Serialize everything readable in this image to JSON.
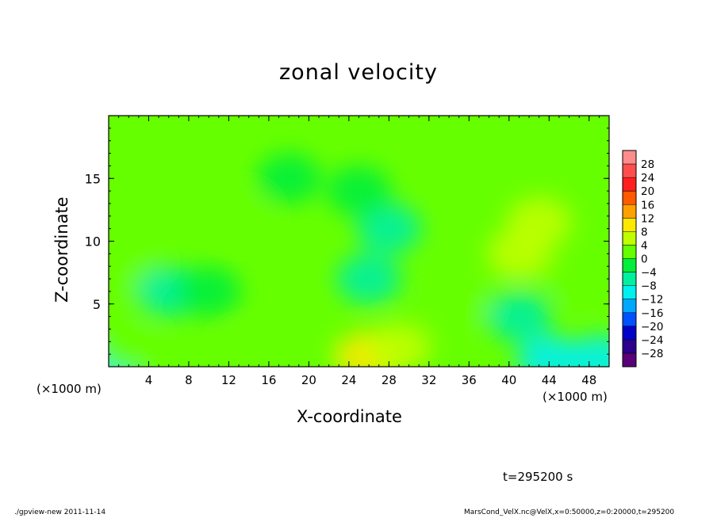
{
  "chart_data": {
    "type": "heatmap",
    "title": "zonal velocity",
    "xlabel": "X-coordinate",
    "ylabel": "Z-coordinate",
    "x_unit_label": "(×1000 m)",
    "xlim": [
      0,
      50
    ],
    "ylim": [
      0,
      20
    ],
    "x_ticks": [
      4,
      8,
      12,
      16,
      20,
      24,
      28,
      32,
      36,
      40,
      44,
      48
    ],
    "y_ticks": [
      5,
      10,
      15
    ],
    "colorbar": {
      "levels": [
        28,
        24,
        20,
        16,
        12,
        8,
        4,
        0,
        -4,
        -8,
        -12,
        -16,
        -20,
        -24,
        -28
      ],
      "labels": [
        "28",
        "24",
        "20",
        "16",
        "12",
        "8",
        "4",
        "0",
        "−4",
        "−8",
        "−12",
        "−16",
        "−20",
        "−24",
        "−28"
      ],
      "colors": [
        "#ff8c8c",
        "#ff4e4e",
        "#ff1f1f",
        "#ff5a00",
        "#ffa000",
        "#ffe800",
        "#bfff00",
        "#66ff00",
        "#00ef3a",
        "#00f0a0",
        "#00f0f0",
        "#00a8ff",
        "#0050ff",
        "#0000c8",
        "#2c008c",
        "#5a0078"
      ]
    },
    "field_features": [
      {
        "x": 0,
        "z": 0,
        "value": -9
      },
      {
        "x": 2,
        "z": 1.5,
        "value": 3
      },
      {
        "x": 26,
        "z": 0.8,
        "value": 9
      },
      {
        "x": 29,
        "z": 1.5,
        "value": 6
      },
      {
        "x": 20,
        "z": 0.5,
        "value": 3
      },
      {
        "x": 14,
        "z": 1.0,
        "value": 3
      },
      {
        "x": 44,
        "z": 0.5,
        "value": -10
      },
      {
        "x": 49,
        "z": 0.5,
        "value": -10
      },
      {
        "x": 41,
        "z": 4,
        "value": -6
      },
      {
        "x": 26,
        "z": 7,
        "value": -6
      },
      {
        "x": 28,
        "z": 11,
        "value": -5
      },
      {
        "x": 25,
        "z": 14,
        "value": -2
      },
      {
        "x": 18,
        "z": 15,
        "value": -1
      },
      {
        "x": 41,
        "z": 9,
        "value": 7
      },
      {
        "x": 43,
        "z": 11.5,
        "value": 4
      },
      {
        "x": 3,
        "z": 7,
        "value": 1
      },
      {
        "x": 6,
        "z": 6,
        "value": -5
      },
      {
        "x": 10,
        "z": 6,
        "value": -3
      },
      {
        "x": 13,
        "z": 12,
        "value": 2
      },
      {
        "x": 35,
        "z": 5,
        "value": 2
      },
      {
        "x": 47,
        "z": 7,
        "value": 2
      }
    ],
    "field_background": 0.5
  },
  "annotation": {
    "time": "t=295200 s"
  },
  "footer": {
    "left": "./gpview-new  2011-11-14",
    "right": "MarsCond_VelX.nc@VelX,x=0:50000,z=0:20000,t=295200"
  }
}
